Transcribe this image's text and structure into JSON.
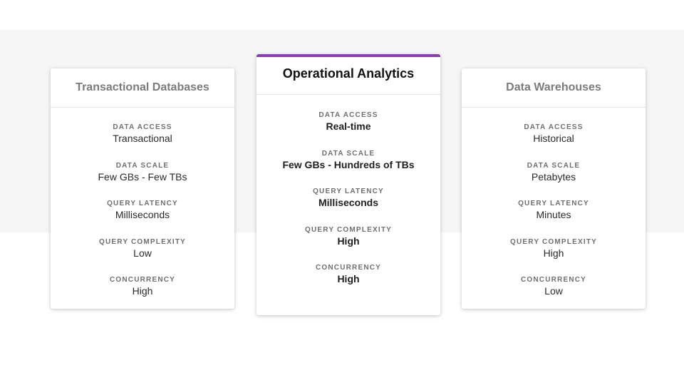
{
  "cards": [
    {
      "title": "Transactional Databases",
      "rows": [
        {
          "label": "DATA ACCESS",
          "value": "Transactional"
        },
        {
          "label": "DATA SCALE",
          "value": "Few GBs - Few TBs"
        },
        {
          "label": "QUERY LATENCY",
          "value": "Milliseconds"
        },
        {
          "label": "QUERY COMPLEXITY",
          "value": "Low"
        },
        {
          "label": "CONCURRENCY",
          "value": "High"
        }
      ]
    },
    {
      "title": "Operational Analytics",
      "accent": "#8e3ab0",
      "rows": [
        {
          "label": "DATA ACCESS",
          "value": "Real-time"
        },
        {
          "label": "DATA SCALE",
          "value": "Few GBs - Hundreds of TBs"
        },
        {
          "label": "QUERY LATENCY",
          "value": "Milliseconds"
        },
        {
          "label": "QUERY COMPLEXITY",
          "value": "High"
        },
        {
          "label": "CONCURRENCY",
          "value": "High"
        }
      ]
    },
    {
      "title": "Data Warehouses",
      "rows": [
        {
          "label": "DATA ACCESS",
          "value": "Historical"
        },
        {
          "label": "DATA SCALE",
          "value": "Petabytes"
        },
        {
          "label": "QUERY LATENCY",
          "value": "Minutes"
        },
        {
          "label": "QUERY COMPLEXITY",
          "value": "High"
        },
        {
          "label": "CONCURRENCY",
          "value": "Low"
        }
      ]
    }
  ]
}
